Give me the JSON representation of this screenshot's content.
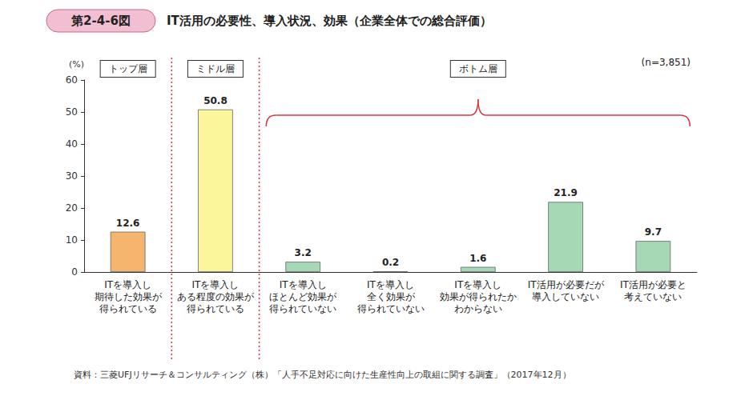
{
  "chart_data": {
    "type": "bar",
    "title": "IT活用の必要性、導入状況、効果（企業全体での総合評価）",
    "annotations": {
      "figure_number": "第2-4-6図",
      "sample": "(n=3,851)",
      "source": "資料：三菱UFJリサーチ＆コンサルティング（株）「人手不足対応に向けた生産性向上の取組に関する調査」（2017年12月）",
      "groups": [
        {
          "label": "トップ層",
          "count": 1
        },
        {
          "label": "ミドル層",
          "count": 1
        },
        {
          "label": "ボトム層",
          "count": 5
        }
      ]
    },
    "ylabel": "(%)",
    "categories": [
      "ITを導入し\n期待した効果が\n得られている",
      "ITを導入し\nある程度の効果が\n得られている",
      "ITを導入し\nほとんど効果が\n得られていない",
      "ITを導入し\n全く効果が\n得られていない",
      "ITを導入し\n効果が得られたか\nわからない",
      "IT活用が必要だが\n導入していない",
      "IT活用が必要と\n考えていない"
    ],
    "values": [
      12.6,
      50.8,
      3.2,
      0.2,
      1.6,
      21.9,
      9.7
    ],
    "colors": [
      "#f5b56e",
      "#fbf59c",
      "#a6d8b6",
      "#a6d8b6",
      "#a6d8b6",
      "#a6d8b6",
      "#a6d8b6"
    ],
    "ylim": [
      0,
      60
    ],
    "yticks": [
      0,
      10,
      20,
      30,
      40,
      50,
      60
    ],
    "grid": false,
    "data_labels": true
  }
}
